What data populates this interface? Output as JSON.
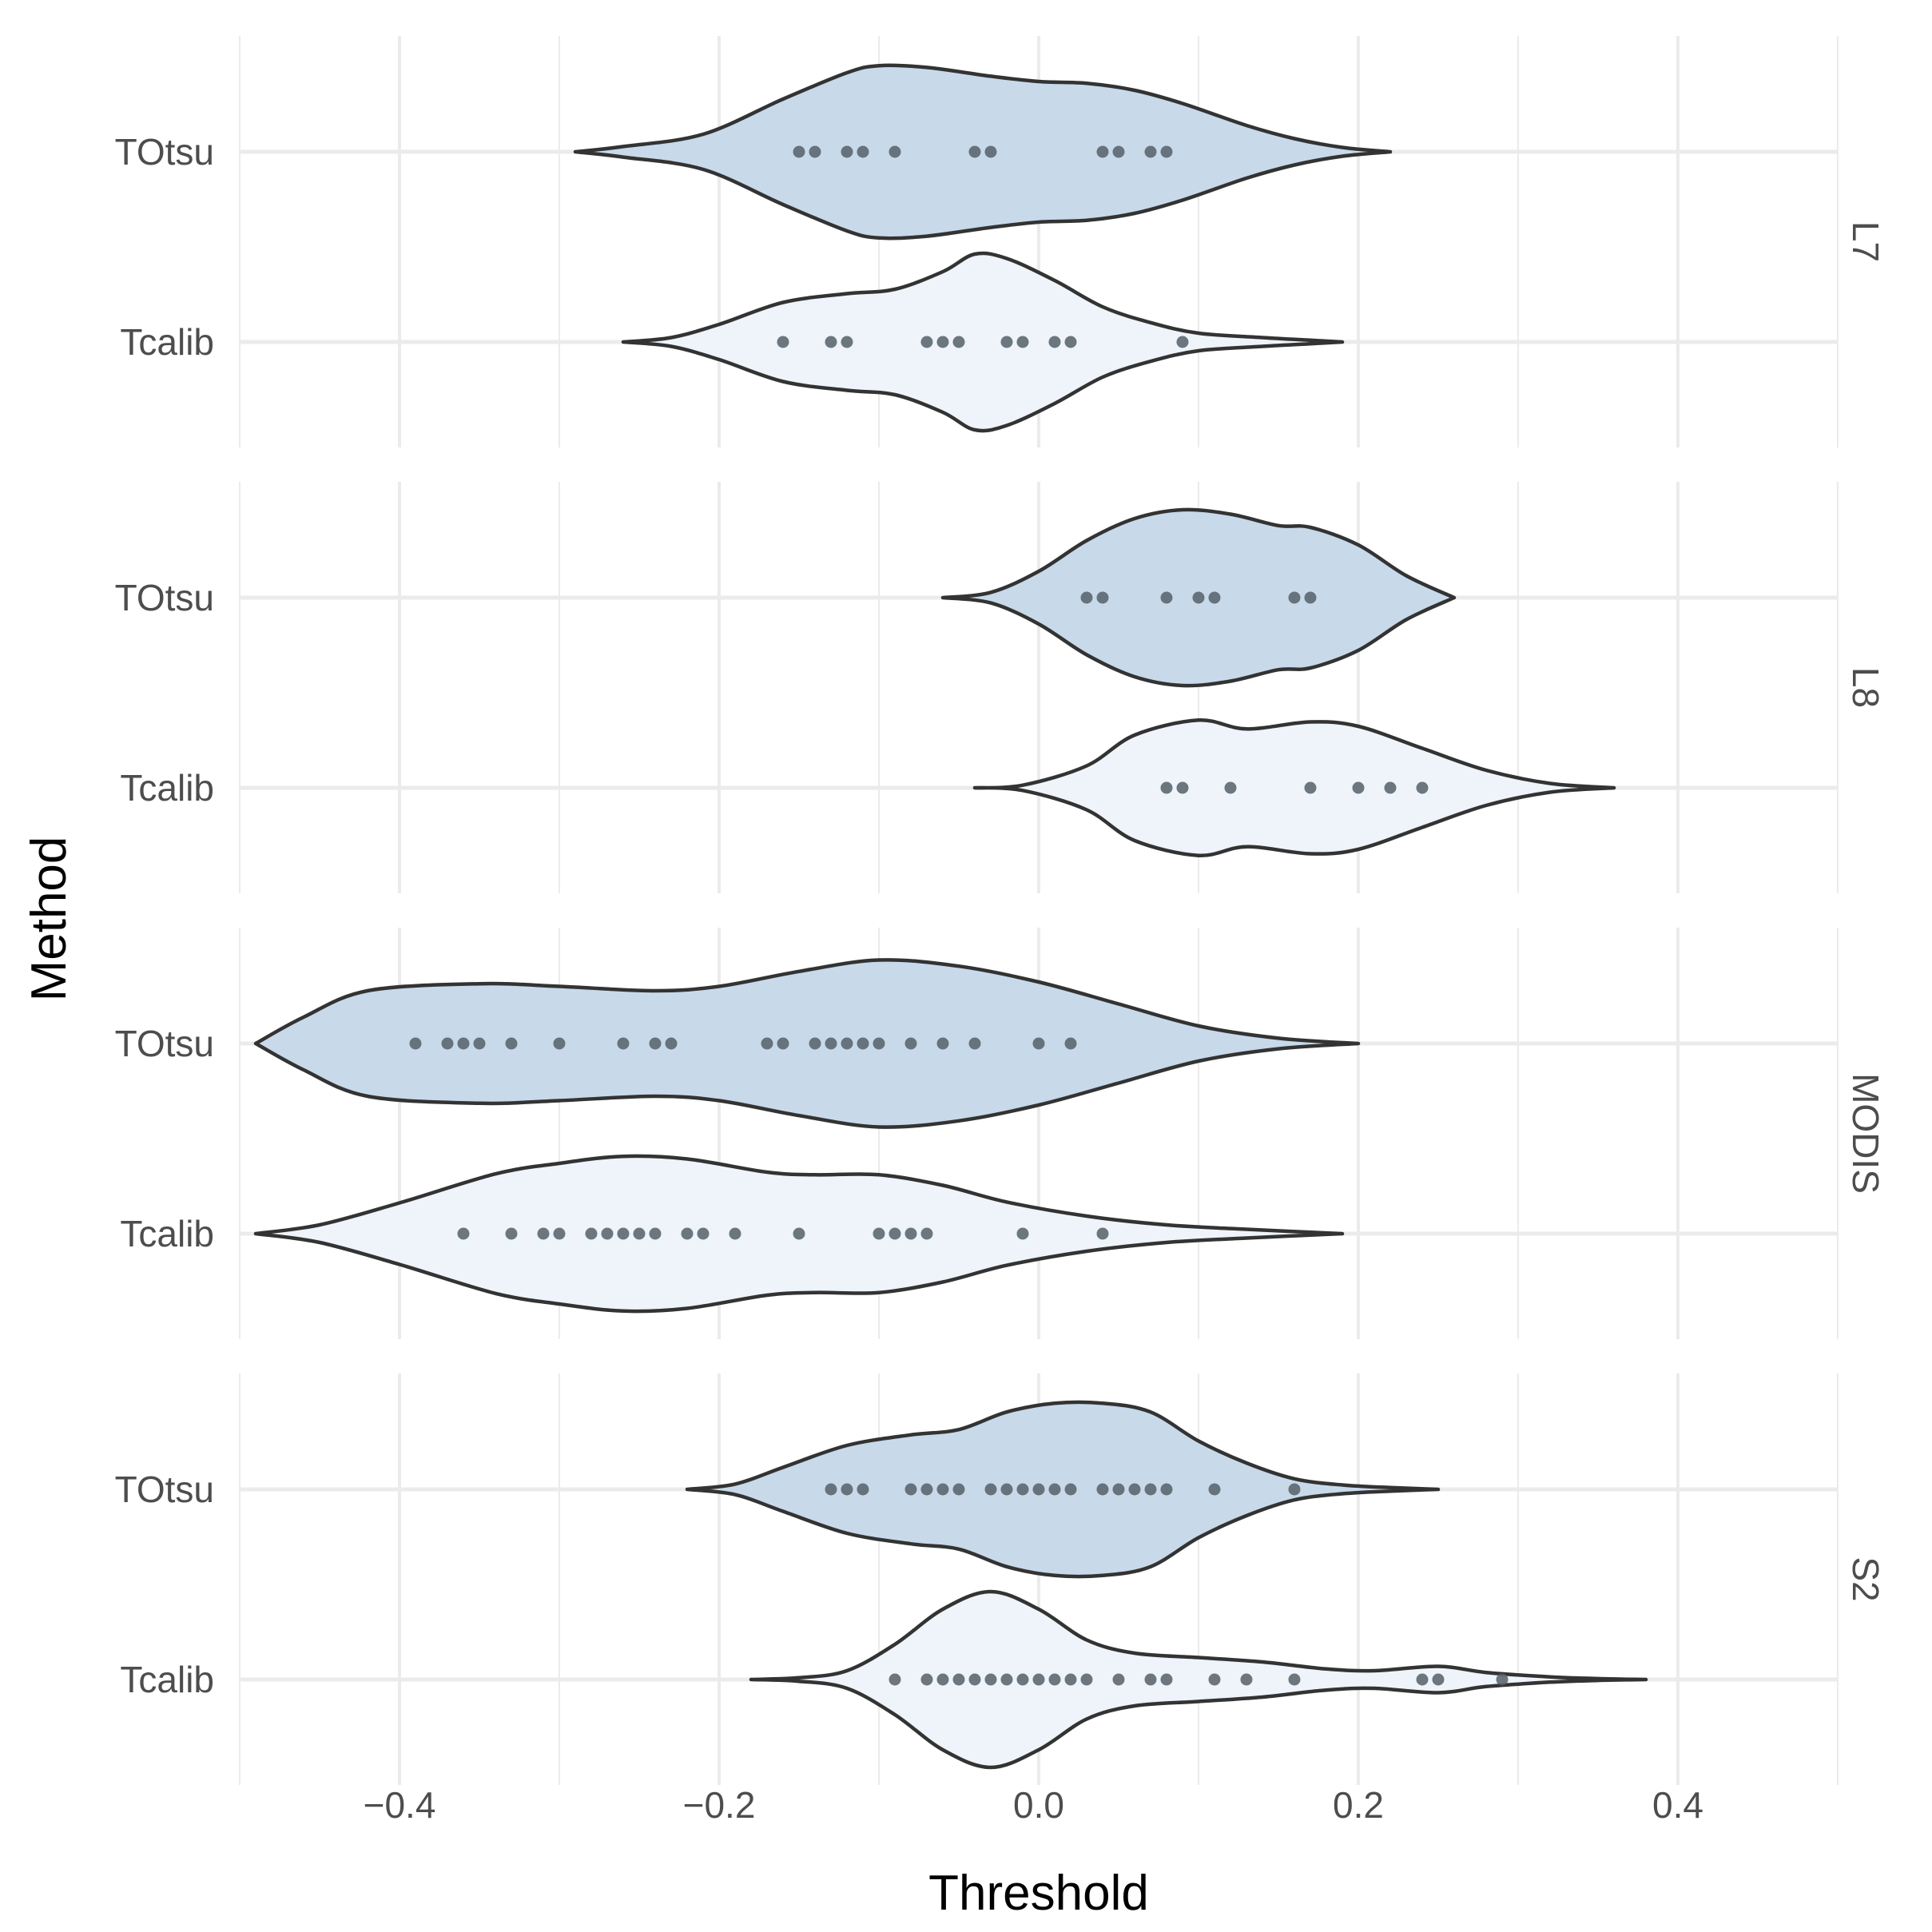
{
  "chart_data": {
    "type": "violin",
    "orientation": "horizontal",
    "xlabel": "Threshold",
    "ylabel": "Method",
    "xlim": [
      -0.5,
      0.5
    ],
    "x_ticks": [
      "−0.4",
      "−0.2",
      "0.0",
      "0.2",
      "0.4"
    ],
    "x_tick_values": [
      -0.4,
      -0.2,
      0.0,
      0.2,
      0.4
    ],
    "x_minor_values": [
      -0.5,
      -0.3,
      -0.1,
      0.1,
      0.3,
      0.5
    ],
    "grid": true,
    "colors": {
      "TOtsu": "#c8d9ea",
      "Tcalib": "#eef4f9",
      "outline": "#333333",
      "points": "#555f69",
      "grid": "#ebebeb",
      "text": "#4d4d4d"
    },
    "panels": [
      {
        "label": "L7",
        "methods": [
          {
            "name": "TOtsu",
            "range": [
              -0.29,
              0.22
            ],
            "profile": [
              [
                -0.29,
                0.0
              ],
              [
                -0.26,
                0.06
              ],
              [
                -0.21,
                0.2
              ],
              [
                -0.16,
                0.6
              ],
              [
                -0.12,
                0.9
              ],
              [
                -0.1,
                0.98
              ],
              [
                -0.07,
                0.96
              ],
              [
                -0.03,
                0.86
              ],
              [
                0.0,
                0.8
              ],
              [
                0.03,
                0.78
              ],
              [
                0.06,
                0.7
              ],
              [
                0.09,
                0.55
              ],
              [
                0.13,
                0.3
              ],
              [
                0.16,
                0.15
              ],
              [
                0.19,
                0.05
              ],
              [
                0.22,
                0.0
              ]
            ],
            "points": [
              -0.15,
              -0.14,
              -0.12,
              -0.11,
              -0.09,
              -0.04,
              -0.03,
              0.04,
              0.05,
              0.07,
              0.08
            ]
          },
          {
            "name": "Tcalib",
            "range": [
              -0.26,
              0.19
            ],
            "profile": [
              [
                -0.26,
                0.0
              ],
              [
                -0.23,
                0.05
              ],
              [
                -0.2,
                0.2
              ],
              [
                -0.16,
                0.45
              ],
              [
                -0.12,
                0.55
              ],
              [
                -0.09,
                0.6
              ],
              [
                -0.06,
                0.8
              ],
              [
                -0.04,
                1.0
              ],
              [
                -0.02,
                0.95
              ],
              [
                0.01,
                0.7
              ],
              [
                0.04,
                0.4
              ],
              [
                0.07,
                0.22
              ],
              [
                0.1,
                0.1
              ],
              [
                0.14,
                0.05
              ],
              [
                0.17,
                0.02
              ],
              [
                0.19,
                0.0
              ]
            ],
            "points": [
              -0.16,
              -0.13,
              -0.12,
              -0.07,
              -0.06,
              -0.05,
              -0.02,
              -0.01,
              0.01,
              0.02,
              0.09
            ]
          }
        ]
      },
      {
        "label": "L8",
        "methods": [
          {
            "name": "TOtsu",
            "range": [
              -0.06,
              0.26
            ],
            "profile": [
              [
                -0.06,
                0.0
              ],
              [
                -0.03,
                0.06
              ],
              [
                0.0,
                0.3
              ],
              [
                0.03,
                0.65
              ],
              [
                0.06,
                0.9
              ],
              [
                0.09,
                1.0
              ],
              [
                0.12,
                0.95
              ],
              [
                0.15,
                0.82
              ],
              [
                0.17,
                0.8
              ],
              [
                0.2,
                0.6
              ],
              [
                0.23,
                0.25
              ],
              [
                0.26,
                0.0
              ]
            ],
            "points": [
              0.03,
              0.04,
              0.08,
              0.1,
              0.11,
              0.16,
              0.17
            ]
          },
          {
            "name": "Tcalib",
            "range": [
              -0.04,
              0.36
            ],
            "profile": [
              [
                -0.04,
                0.0
              ],
              [
                -0.01,
                0.03
              ],
              [
                0.03,
                0.25
              ],
              [
                0.06,
                0.6
              ],
              [
                0.1,
                0.77
              ],
              [
                0.13,
                0.67
              ],
              [
                0.17,
                0.75
              ],
              [
                0.2,
                0.7
              ],
              [
                0.24,
                0.45
              ],
              [
                0.28,
                0.2
              ],
              [
                0.32,
                0.05
              ],
              [
                0.36,
                0.0
              ]
            ],
            "points": [
              0.08,
              0.09,
              0.12,
              0.17,
              0.2,
              0.22,
              0.24
            ]
          }
        ]
      },
      {
        "label": "MODIS",
        "methods": [
          {
            "name": "TOtsu",
            "range": [
              -0.49,
              0.2
            ],
            "profile": [
              [
                -0.49,
                0.0
              ],
              [
                -0.46,
                0.3
              ],
              [
                -0.42,
                0.6
              ],
              [
                -0.35,
                0.68
              ],
              [
                -0.3,
                0.65
              ],
              [
                -0.24,
                0.6
              ],
              [
                -0.2,
                0.65
              ],
              [
                -0.15,
                0.82
              ],
              [
                -0.1,
                0.95
              ],
              [
                -0.05,
                0.88
              ],
              [
                0.0,
                0.7
              ],
              [
                0.05,
                0.45
              ],
              [
                0.1,
                0.2
              ],
              [
                0.15,
                0.06
              ],
              [
                0.2,
                0.0
              ]
            ],
            "points": [
              -0.39,
              -0.37,
              -0.36,
              -0.35,
              -0.33,
              -0.3,
              -0.26,
              -0.24,
              -0.23,
              -0.17,
              -0.16,
              -0.14,
              -0.13,
              -0.12,
              -0.11,
              -0.1,
              -0.08,
              -0.06,
              -0.04,
              0.0,
              0.02
            ]
          },
          {
            "name": "Tcalib",
            "range": [
              -0.49,
              0.19
            ],
            "profile": [
              [
                -0.49,
                0.0
              ],
              [
                -0.45,
                0.1
              ],
              [
                -0.4,
                0.35
              ],
              [
                -0.34,
                0.68
              ],
              [
                -0.3,
                0.8
              ],
              [
                -0.26,
                0.88
              ],
              [
                -0.22,
                0.85
              ],
              [
                -0.17,
                0.7
              ],
              [
                -0.14,
                0.67
              ],
              [
                -0.1,
                0.67
              ],
              [
                -0.06,
                0.55
              ],
              [
                -0.02,
                0.36
              ],
              [
                0.03,
                0.2
              ],
              [
                0.08,
                0.1
              ],
              [
                0.13,
                0.05
              ],
              [
                0.19,
                0.0
              ]
            ],
            "points": [
              -0.36,
              -0.33,
              -0.31,
              -0.3,
              -0.28,
              -0.27,
              -0.26,
              -0.25,
              -0.24,
              -0.22,
              -0.21,
              -0.19,
              -0.15,
              -0.1,
              -0.09,
              -0.08,
              -0.07,
              -0.01,
              0.04
            ]
          }
        ]
      },
      {
        "label": "S2",
        "methods": [
          {
            "name": "TOtsu",
            "range": [
              -0.22,
              0.25
            ],
            "profile": [
              [
                -0.22,
                0.0
              ],
              [
                -0.19,
                0.06
              ],
              [
                -0.16,
                0.25
              ],
              [
                -0.12,
                0.5
              ],
              [
                -0.08,
                0.62
              ],
              [
                -0.05,
                0.68
              ],
              [
                -0.02,
                0.88
              ],
              [
                0.01,
                0.98
              ],
              [
                0.04,
                0.98
              ],
              [
                0.07,
                0.88
              ],
              [
                0.1,
                0.55
              ],
              [
                0.13,
                0.3
              ],
              [
                0.16,
                0.12
              ],
              [
                0.19,
                0.05
              ],
              [
                0.22,
                0.02
              ],
              [
                0.25,
                0.0
              ]
            ],
            "points": [
              -0.13,
              -0.12,
              -0.11,
              -0.08,
              -0.07,
              -0.06,
              -0.05,
              -0.03,
              -0.02,
              -0.01,
              0.0,
              0.01,
              0.02,
              0.04,
              0.05,
              0.06,
              0.07,
              0.08,
              0.11,
              0.16
            ]
          },
          {
            "name": "Tcalib",
            "range": [
              -0.18,
              0.38
            ],
            "profile": [
              [
                -0.18,
                0.0
              ],
              [
                -0.15,
                0.02
              ],
              [
                -0.12,
                0.1
              ],
              [
                -0.09,
                0.4
              ],
              [
                -0.06,
                0.8
              ],
              [
                -0.03,
                1.0
              ],
              [
                0.0,
                0.8
              ],
              [
                0.03,
                0.45
              ],
              [
                0.06,
                0.3
              ],
              [
                0.1,
                0.25
              ],
              [
                0.14,
                0.2
              ],
              [
                0.18,
                0.12
              ],
              [
                0.21,
                0.1
              ],
              [
                0.25,
                0.15
              ],
              [
                0.28,
                0.08
              ],
              [
                0.32,
                0.03
              ],
              [
                0.35,
                0.01
              ],
              [
                0.38,
                0.0
              ]
            ],
            "points": [
              -0.09,
              -0.07,
              -0.06,
              -0.05,
              -0.04,
              -0.03,
              -0.02,
              -0.01,
              0.0,
              0.01,
              0.02,
              0.03,
              0.05,
              0.07,
              0.08,
              0.11,
              0.13,
              0.16,
              0.24,
              0.25,
              0.29
            ]
          }
        ]
      }
    ]
  }
}
